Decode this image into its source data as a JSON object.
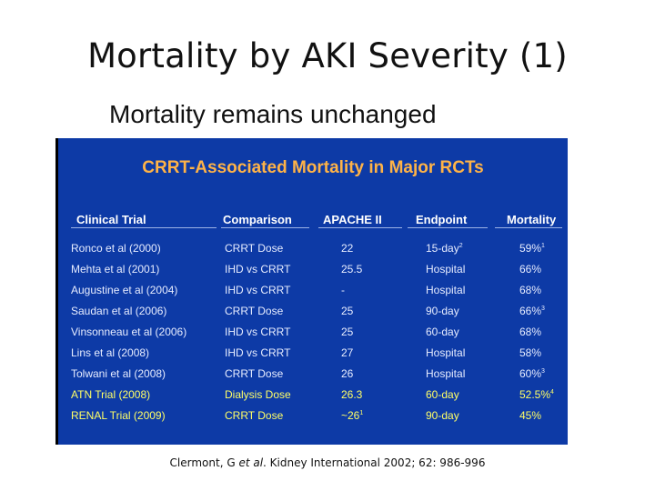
{
  "slide": {
    "title": "Mortality by AKI Severity (1)",
    "subtitle": "Mortality remains unchanged"
  },
  "table": {
    "title": "CRRT-Associated Mortality in Major RCTs",
    "headers": [
      "Clinical Trial",
      "Comparison",
      "APACHE II",
      "Endpoint",
      "Mortality"
    ],
    "rows": [
      {
        "trial": "Ronco et al (2000)",
        "comparison": "CRRT Dose",
        "apache": "22",
        "endpoint": "15-day",
        "endpoint_sup": "2",
        "mortality": "59%",
        "mortality_sup": "1",
        "highlight": false
      },
      {
        "trial": "Mehta et al (2001)",
        "comparison": "IHD vs CRRT",
        "apache": "25.5",
        "endpoint": "Hospital",
        "endpoint_sup": "",
        "mortality": "66%",
        "mortality_sup": "",
        "highlight": false
      },
      {
        "trial": "Augustine et al (2004)",
        "comparison": "IHD vs CRRT",
        "apache": "-",
        "endpoint": "Hospital",
        "endpoint_sup": "",
        "mortality": "68%",
        "mortality_sup": "",
        "highlight": false
      },
      {
        "trial": "Saudan et al (2006)",
        "comparison": "CRRT Dose",
        "apache": "25",
        "endpoint": "90-day",
        "endpoint_sup": "",
        "mortality": "66%",
        "mortality_sup": "3",
        "highlight": false
      },
      {
        "trial": "Vinsonneau et al (2006)",
        "comparison": "IHD vs CRRT",
        "apache": "25",
        "endpoint": "60-day",
        "endpoint_sup": "",
        "mortality": "68%",
        "mortality_sup": "",
        "highlight": false
      },
      {
        "trial": "Lins et al (2008)",
        "comparison": "IHD vs CRRT",
        "apache": "27",
        "endpoint": "Hospital",
        "endpoint_sup": "",
        "mortality": "58%",
        "mortality_sup": "",
        "highlight": false
      },
      {
        "trial": "Tolwani et al (2008)",
        "comparison": "CRRT Dose",
        "apache": "26",
        "endpoint": "Hospital",
        "endpoint_sup": "",
        "mortality": "60%",
        "mortality_sup": "3",
        "highlight": false
      },
      {
        "trial": "ATN Trial (2008)",
        "comparison": "Dialysis Dose",
        "apache": "26.3",
        "endpoint": "60-day",
        "endpoint_sup": "",
        "mortality": "52.5%",
        "mortality_sup": "4",
        "highlight": true
      },
      {
        "trial": "RENAL Trial (2009)",
        "comparison": "CRRT Dose",
        "apache": "~26",
        "apache_sup": "1",
        "endpoint": "90-day",
        "endpoint_sup": "",
        "mortality": "45%",
        "mortality_sup": "",
        "highlight": true
      }
    ]
  },
  "citation": {
    "authors": "Clermont, G ",
    "etal": "et al",
    "rest": ". Kidney International 2002; 62: 986-996"
  },
  "colors": {
    "panel_bg": "#0d3aa6",
    "table_title": "#ffb347",
    "highlight_text": "#ffff66"
  }
}
